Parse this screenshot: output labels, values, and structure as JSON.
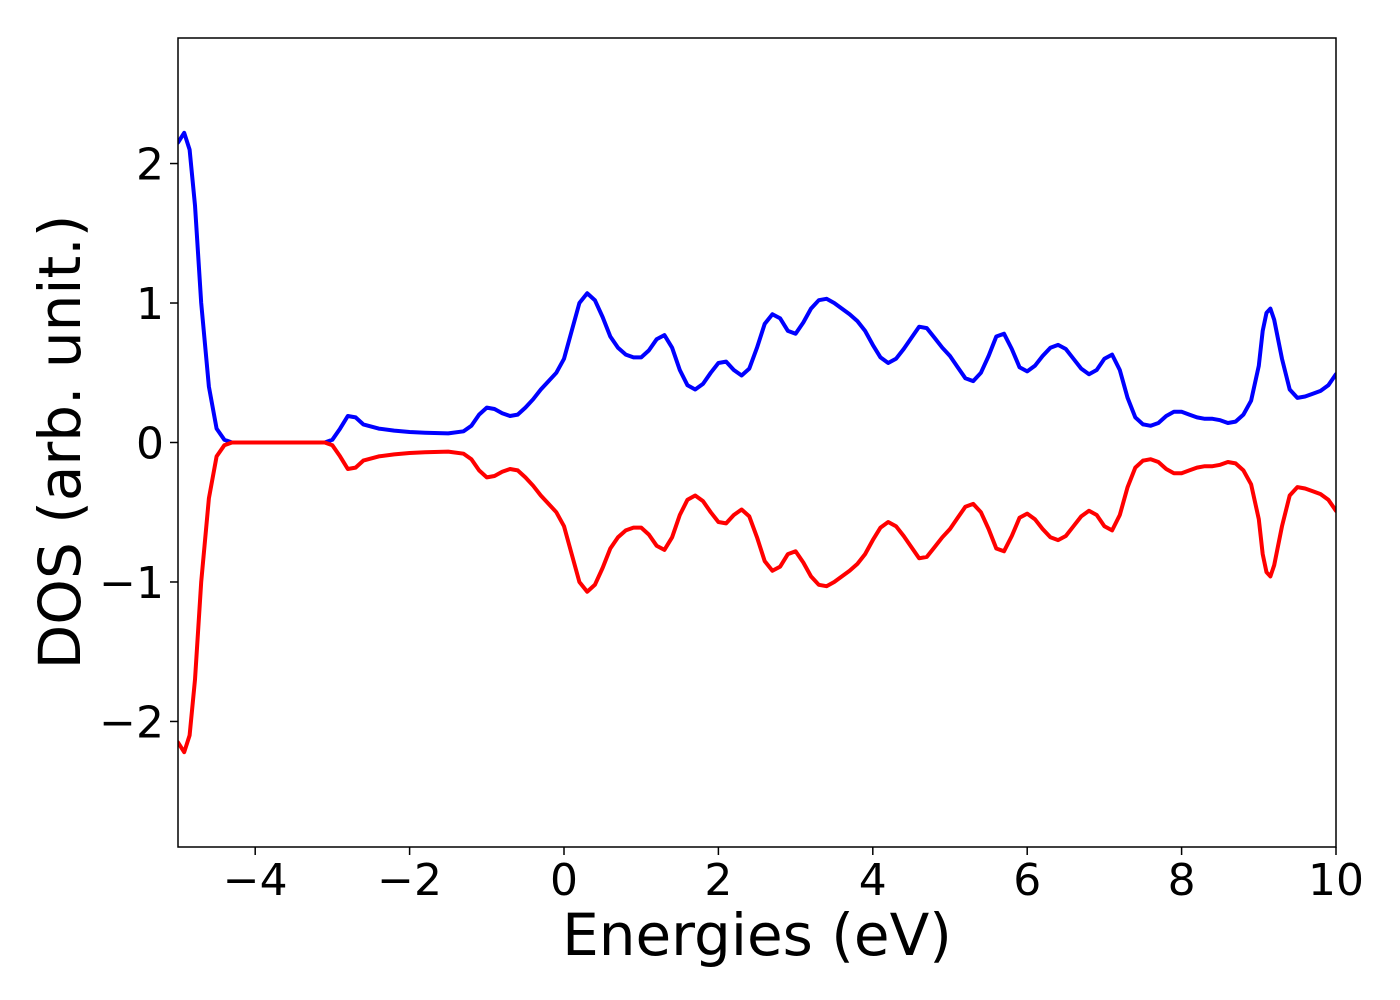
{
  "chart_data": {
    "type": "line",
    "title": "",
    "xlabel": "Energies (eV)",
    "ylabel": "DOS (arb. unit.)",
    "xlim": [
      -5,
      10
    ],
    "ylim": [
      -2.9,
      2.9
    ],
    "grid": false,
    "legend": "none",
    "x_ticks": [
      {
        "value": -4,
        "label": "−4"
      },
      {
        "value": -2,
        "label": "−2"
      },
      {
        "value": 0,
        "label": "0"
      },
      {
        "value": 2,
        "label": "2"
      },
      {
        "value": 4,
        "label": "4"
      },
      {
        "value": 6,
        "label": "6"
      },
      {
        "value": 8,
        "label": "8"
      },
      {
        "value": 10,
        "label": "10"
      }
    ],
    "y_ticks": [
      {
        "value": -2,
        "label": "−2"
      },
      {
        "value": -1,
        "label": "−1"
      },
      {
        "value": 0,
        "label": "0"
      },
      {
        "value": 1,
        "label": "1"
      },
      {
        "value": 2,
        "label": "2"
      }
    ],
    "series": [
      {
        "color": "#0000ff",
        "x": [
          -5.0,
          -4.92,
          -4.85,
          -4.78,
          -4.7,
          -4.6,
          -4.5,
          -4.4,
          -4.3,
          -4.2,
          -4.0,
          -3.5,
          -3.1,
          -3.0,
          -2.9,
          -2.8,
          -2.7,
          -2.6,
          -2.4,
          -2.2,
          -2.0,
          -1.8,
          -1.5,
          -1.3,
          -1.2,
          -1.1,
          -1.0,
          -0.9,
          -0.8,
          -0.7,
          -0.6,
          -0.5,
          -0.4,
          -0.3,
          -0.2,
          -0.1,
          0.0,
          0.1,
          0.2,
          0.3,
          0.4,
          0.5,
          0.6,
          0.7,
          0.8,
          0.9,
          1.0,
          1.1,
          1.2,
          1.3,
          1.4,
          1.5,
          1.6,
          1.7,
          1.8,
          1.9,
          2.0,
          2.1,
          2.2,
          2.3,
          2.4,
          2.5,
          2.6,
          2.7,
          2.8,
          2.9,
          3.0,
          3.1,
          3.2,
          3.3,
          3.4,
          3.5,
          3.6,
          3.7,
          3.8,
          3.9,
          4.0,
          4.1,
          4.2,
          4.3,
          4.4,
          4.5,
          4.6,
          4.7,
          4.8,
          4.9,
          5.0,
          5.1,
          5.2,
          5.3,
          5.4,
          5.5,
          5.6,
          5.7,
          5.8,
          5.9,
          6.0,
          6.1,
          6.2,
          6.3,
          6.4,
          6.5,
          6.6,
          6.7,
          6.8,
          6.9,
          7.0,
          7.1,
          7.2,
          7.3,
          7.4,
          7.5,
          7.6,
          7.7,
          7.8,
          7.9,
          8.0,
          8.1,
          8.2,
          8.3,
          8.4,
          8.5,
          8.6,
          8.7,
          8.8,
          8.9,
          9.0,
          9.05,
          9.1,
          9.15,
          9.2,
          9.3,
          9.4,
          9.5,
          9.6,
          9.7,
          9.8,
          9.9,
          10.0
        ],
        "values": [
          2.15,
          2.22,
          2.1,
          1.7,
          1.0,
          0.4,
          0.1,
          0.02,
          0.0,
          0.0,
          0.0,
          0.0,
          0.0,
          0.02,
          0.1,
          0.19,
          0.18,
          0.13,
          0.1,
          0.085,
          0.075,
          0.07,
          0.065,
          0.08,
          0.12,
          0.2,
          0.25,
          0.24,
          0.21,
          0.19,
          0.2,
          0.25,
          0.31,
          0.38,
          0.44,
          0.5,
          0.6,
          0.8,
          1.0,
          1.07,
          1.02,
          0.9,
          0.76,
          0.68,
          0.63,
          0.61,
          0.61,
          0.66,
          0.74,
          0.77,
          0.68,
          0.52,
          0.41,
          0.38,
          0.42,
          0.5,
          0.57,
          0.58,
          0.52,
          0.48,
          0.53,
          0.68,
          0.85,
          0.92,
          0.89,
          0.8,
          0.78,
          0.86,
          0.96,
          1.02,
          1.03,
          1.0,
          0.96,
          0.92,
          0.87,
          0.8,
          0.7,
          0.61,
          0.57,
          0.6,
          0.67,
          0.75,
          0.83,
          0.82,
          0.75,
          0.68,
          0.62,
          0.54,
          0.46,
          0.44,
          0.5,
          0.62,
          0.76,
          0.78,
          0.67,
          0.54,
          0.51,
          0.55,
          0.62,
          0.68,
          0.7,
          0.67,
          0.6,
          0.53,
          0.49,
          0.52,
          0.6,
          0.63,
          0.52,
          0.32,
          0.18,
          0.13,
          0.12,
          0.14,
          0.19,
          0.22,
          0.22,
          0.2,
          0.18,
          0.17,
          0.17,
          0.16,
          0.14,
          0.15,
          0.2,
          0.3,
          0.55,
          0.8,
          0.93,
          0.96,
          0.88,
          0.6,
          0.38,
          0.32,
          0.33,
          0.35,
          0.37,
          0.41,
          0.49
        ]
      },
      {
        "color": "#ff0000",
        "x": [
          -5.0,
          -4.92,
          -4.85,
          -4.78,
          -4.7,
          -4.6,
          -4.5,
          -4.4,
          -4.3,
          -4.2,
          -4.0,
          -3.5,
          -3.1,
          -3.0,
          -2.9,
          -2.8,
          -2.7,
          -2.6,
          -2.4,
          -2.2,
          -2.0,
          -1.8,
          -1.5,
          -1.3,
          -1.2,
          -1.1,
          -1.0,
          -0.9,
          -0.8,
          -0.7,
          -0.6,
          -0.5,
          -0.4,
          -0.3,
          -0.2,
          -0.1,
          0.0,
          0.1,
          0.2,
          0.3,
          0.4,
          0.5,
          0.6,
          0.7,
          0.8,
          0.9,
          1.0,
          1.1,
          1.2,
          1.3,
          1.4,
          1.5,
          1.6,
          1.7,
          1.8,
          1.9,
          2.0,
          2.1,
          2.2,
          2.3,
          2.4,
          2.5,
          2.6,
          2.7,
          2.8,
          2.9,
          3.0,
          3.1,
          3.2,
          3.3,
          3.4,
          3.5,
          3.6,
          3.7,
          3.8,
          3.9,
          4.0,
          4.1,
          4.2,
          4.3,
          4.4,
          4.5,
          4.6,
          4.7,
          4.8,
          4.9,
          5.0,
          5.1,
          5.2,
          5.3,
          5.4,
          5.5,
          5.6,
          5.7,
          5.8,
          5.9,
          6.0,
          6.1,
          6.2,
          6.3,
          6.4,
          6.5,
          6.6,
          6.7,
          6.8,
          6.9,
          7.0,
          7.1,
          7.2,
          7.3,
          7.4,
          7.5,
          7.6,
          7.7,
          7.8,
          7.9,
          8.0,
          8.1,
          8.2,
          8.3,
          8.4,
          8.5,
          8.6,
          8.7,
          8.8,
          8.9,
          9.0,
          9.05,
          9.1,
          9.15,
          9.2,
          9.3,
          9.4,
          9.5,
          9.6,
          9.7,
          9.8,
          9.9,
          10.0
        ],
        "values": [
          -2.15,
          -2.22,
          -2.1,
          -1.7,
          -1.0,
          -0.4,
          -0.1,
          -0.02,
          0.0,
          0.0,
          0.0,
          0.0,
          0.0,
          -0.02,
          -0.1,
          -0.19,
          -0.18,
          -0.13,
          -0.1,
          -0.085,
          -0.075,
          -0.07,
          -0.065,
          -0.08,
          -0.12,
          -0.2,
          -0.25,
          -0.24,
          -0.21,
          -0.19,
          -0.2,
          -0.25,
          -0.31,
          -0.38,
          -0.44,
          -0.5,
          -0.6,
          -0.8,
          -1.0,
          -1.07,
          -1.02,
          -0.9,
          -0.76,
          -0.68,
          -0.63,
          -0.61,
          -0.61,
          -0.66,
          -0.74,
          -0.77,
          -0.68,
          -0.52,
          -0.41,
          -0.38,
          -0.42,
          -0.5,
          -0.57,
          -0.58,
          -0.52,
          -0.48,
          -0.53,
          -0.68,
          -0.85,
          -0.92,
          -0.89,
          -0.8,
          -0.78,
          -0.86,
          -0.96,
          -1.02,
          -1.03,
          -1.0,
          -0.96,
          -0.92,
          -0.87,
          -0.8,
          -0.7,
          -0.61,
          -0.57,
          -0.6,
          -0.67,
          -0.75,
          -0.83,
          -0.82,
          -0.75,
          -0.68,
          -0.62,
          -0.54,
          -0.46,
          -0.44,
          -0.5,
          -0.62,
          -0.76,
          -0.78,
          -0.67,
          -0.54,
          -0.51,
          -0.55,
          -0.62,
          -0.68,
          -0.7,
          -0.67,
          -0.6,
          -0.53,
          -0.49,
          -0.52,
          -0.6,
          -0.63,
          -0.52,
          -0.32,
          -0.18,
          -0.13,
          -0.12,
          -0.14,
          -0.19,
          -0.22,
          -0.22,
          -0.2,
          -0.18,
          -0.17,
          -0.17,
          -0.16,
          -0.14,
          -0.15,
          -0.2,
          -0.3,
          -0.55,
          -0.8,
          -0.93,
          -0.96,
          -0.88,
          -0.6,
          -0.38,
          -0.32,
          -0.33,
          -0.35,
          -0.37,
          -0.41,
          -0.49
        ]
      }
    ]
  }
}
